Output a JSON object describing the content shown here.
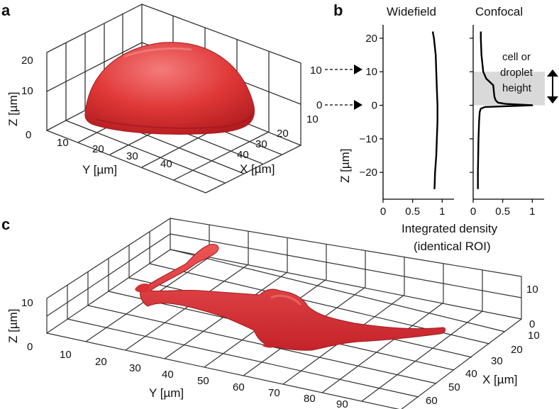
{
  "panel_labels": {
    "a": "a",
    "b": "b",
    "c": "c"
  },
  "colors": {
    "surface": "#e23a3a",
    "surface_dark": "#b81f22",
    "surface_light": "#f07070",
    "grid": "#333333",
    "band": "#d9d9d9",
    "line": "#000000"
  },
  "panel_a": {
    "type": "3d-surface",
    "z_label": "Z [µm]",
    "y_label": "Y [µm]",
    "x_label": "X [µm]",
    "z_ticks": [
      "0",
      "10",
      "20"
    ],
    "y_ticks": [
      "10",
      "20",
      "30",
      "40"
    ],
    "x_ticks": [
      "10",
      "20",
      "30",
      "40"
    ],
    "z_markers": [
      "10",
      "0"
    ]
  },
  "chart_data": [
    {
      "type": "line",
      "panel": "b",
      "title": "Widefield",
      "ylabel": "Z [µm]",
      "xlim": [
        0,
        1.2
      ],
      "ylim": [
        -28,
        24
      ],
      "xticks": [
        "0",
        "0.5",
        "1"
      ],
      "yticks": [
        "20",
        "10",
        "0",
        "−10",
        "−20"
      ],
      "series": [
        {
          "z": [
            -25,
            -20,
            -15,
            -10,
            -5,
            0,
            5,
            10,
            15,
            20,
            22
          ],
          "density": [
            0.87,
            0.88,
            0.9,
            0.91,
            0.92,
            0.92,
            0.91,
            0.9,
            0.89,
            0.86,
            0.84
          ]
        }
      ]
    },
    {
      "type": "line",
      "panel": "b",
      "title": "Confocal",
      "xlim": [
        0,
        1.2
      ],
      "ylim": [
        -28,
        24
      ],
      "xticks": [
        "0",
        "0.5",
        "1"
      ],
      "shaded_band": [
        0,
        10
      ],
      "annotation": "cell or droplet height",
      "series": [
        {
          "z": [
            -25,
            -20,
            -10,
            -5,
            -2,
            -1,
            -0.5,
            0,
            0.4,
            0.8,
            1.5,
            2.5,
            4,
            6,
            8,
            10,
            15,
            20,
            22
          ],
          "density": [
            0.08,
            0.08,
            0.09,
            0.1,
            0.11,
            0.13,
            0.2,
            1.0,
            0.55,
            0.42,
            0.38,
            0.36,
            0.35,
            0.34,
            0.22,
            0.17,
            0.14,
            0.13,
            0.13
          ]
        }
      ]
    }
  ],
  "panel_b": {
    "xlabel_line1": "Integrated density",
    "xlabel_line2": "(identical ROI)",
    "annotation_lines": [
      "cell or",
      "droplet",
      "height"
    ]
  },
  "panel_c": {
    "type": "3d-surface",
    "z_label": "Z [µm]",
    "y_label": "Y [µm]",
    "x_label": "X [µm]",
    "z_ticks_left": [
      "0",
      "10"
    ],
    "z_ticks_right": [
      "0",
      "10"
    ],
    "y_ticks": [
      "10",
      "20",
      "30",
      "40",
      "50",
      "60",
      "70",
      "80",
      "90"
    ],
    "x_ticks": [
      "10",
      "20",
      "30",
      "40",
      "50",
      "60"
    ]
  }
}
